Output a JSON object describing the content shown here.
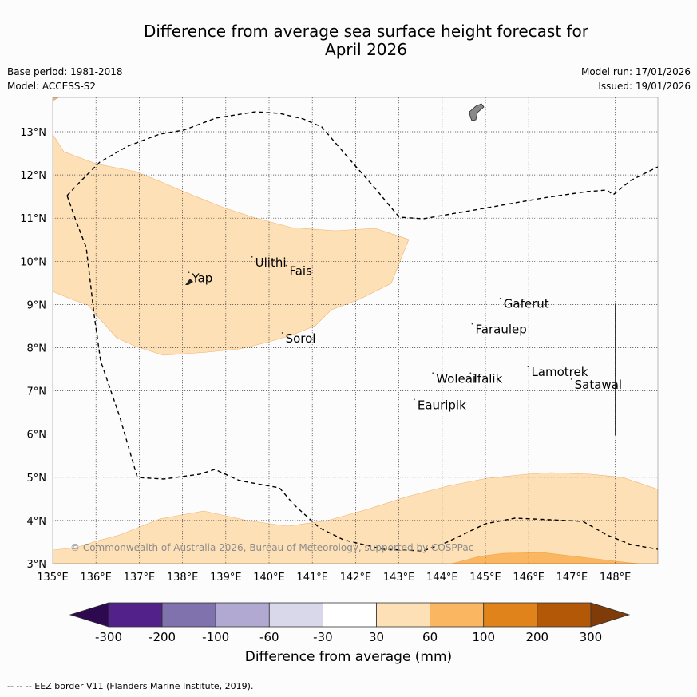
{
  "title": [
    "Difference from average sea surface height forecast for",
    "April 2026"
  ],
  "meta_left": [
    "Base period: 1981-2018",
    "Model: ACCESS-S2"
  ],
  "meta_right": [
    "Model run: 17/01/2026",
    "Issued: 19/01/2026"
  ],
  "copyright": "© Commonwealth of Australia 2026, Bureau of Meteorology, supported by COSPPac",
  "map_extent": {
    "lon": [
      135,
      149
    ],
    "lat": [
      3,
      14
    ]
  },
  "lon_ticks": [
    {
      "value": 135,
      "label": "135°E"
    },
    {
      "value": 136,
      "label": "136°E"
    },
    {
      "value": 137,
      "label": "137°E"
    },
    {
      "value": 138,
      "label": "138°E"
    },
    {
      "value": 139,
      "label": "139°E"
    },
    {
      "value": 140,
      "label": "140°E"
    },
    {
      "value": 141,
      "label": "141°E"
    },
    {
      "value": 142,
      "label": "142°E"
    },
    {
      "value": 143,
      "label": "143°E"
    },
    {
      "value": 144,
      "label": "144°E"
    },
    {
      "value": 145,
      "label": "145°E"
    },
    {
      "value": 146,
      "label": "146°E"
    },
    {
      "value": 147,
      "label": "147°E"
    },
    {
      "value": 148,
      "label": "148°E"
    }
  ],
  "lat_ticks": [
    {
      "value": 3,
      "label": "3°N"
    },
    {
      "value": 4,
      "label": "4°N"
    },
    {
      "value": 5,
      "label": "5°N"
    },
    {
      "value": 6,
      "label": "6°N"
    },
    {
      "value": 7,
      "label": "7°N"
    },
    {
      "value": 8,
      "label": "8°N"
    },
    {
      "value": 9,
      "label": "9°N"
    },
    {
      "value": 10,
      "label": "10°N"
    },
    {
      "value": 11,
      "label": "11°N"
    },
    {
      "value": 12,
      "label": "12°N"
    },
    {
      "value": 13,
      "label": "13°N"
    }
  ],
  "places": [
    {
      "name": "Yap",
      "lon": 138.22,
      "lat": 9.52
    },
    {
      "name": "Ulithi",
      "lon": 139.68,
      "lat": 9.88
    },
    {
      "name": "Fais",
      "lon": 140.47,
      "lat": 9.68
    },
    {
      "name": "Gaferut",
      "lon": 145.42,
      "lat": 8.92
    },
    {
      "name": "Faraulep",
      "lon": 144.77,
      "lat": 8.33
    },
    {
      "name": "Sorol",
      "lon": 140.38,
      "lat": 8.12
    },
    {
      "name": "Lamotrek",
      "lon": 146.06,
      "lat": 7.34
    },
    {
      "name": "Woleai",
      "lon": 143.86,
      "lat": 7.19
    },
    {
      "name": "Ifalik",
      "lon": 144.73,
      "lat": 7.19
    },
    {
      "name": "Satawal",
      "lon": 147.06,
      "lat": 7.05
    },
    {
      "name": "Eauripik",
      "lon": 143.43,
      "lat": 6.58
    }
  ],
  "colorbar": {
    "bounds": [
      "-300",
      "-200",
      "-100",
      "-60",
      "-30",
      "30",
      "60",
      "100",
      "200",
      "300"
    ],
    "colors": [
      "#52218a",
      "#7f72ad",
      "#b1a9d2",
      "#d8d8ea",
      "#ffffff",
      "#fee0b6",
      "#fbb661",
      "#e0831a",
      "#b35807"
    ],
    "under_color": "#2d0a4f",
    "over_color": "#7f3b08",
    "title": "Difference from average (mm)"
  },
  "footer": "--  --  -- EEZ border V11 (Flanders Marine Institute, 2019)."
}
